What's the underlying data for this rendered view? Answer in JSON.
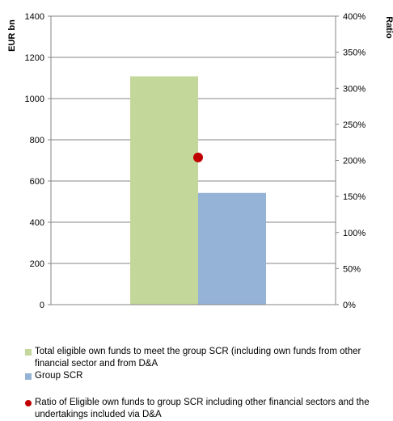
{
  "chart_data": {
    "type": "bar",
    "categories": [
      "Total eligible own funds",
      "Group SCR"
    ],
    "series": [
      {
        "name": "Total eligible own funds to meet the group SCR (including own funds from other financial sector and from D&A",
        "color": "#c4d79b",
        "value": 1108
      },
      {
        "name": "Group SCR",
        "color": "#95b3d7",
        "value": 542
      }
    ],
    "ratio_point": {
      "name": "Ratio of Eligible own funds to group SCR including other financial sectors and the undertakings included via D&A",
      "color": "#c00000",
      "value": 2.04,
      "axis": "secondary"
    },
    "ylabel": "EUR bn",
    "y2label": "Ratio",
    "ylim": [
      0,
      1400
    ],
    "y2lim": [
      0,
      4
    ],
    "yticks": [
      "0",
      "200",
      "400",
      "600",
      "800",
      "1000",
      "1200",
      "1400"
    ],
    "y2ticks": [
      "0%",
      "50%",
      "100%",
      "150%",
      "200%",
      "250%",
      "300%",
      "350%",
      "400%"
    ],
    "grid": true,
    "legend_position": "bottom"
  }
}
